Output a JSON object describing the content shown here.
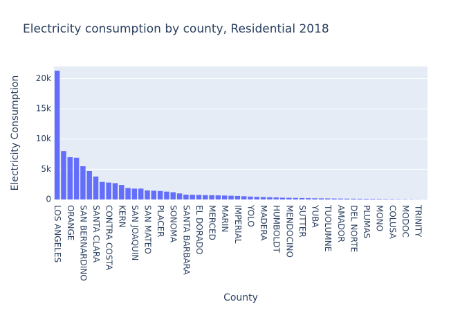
{
  "chart_data": {
    "type": "bar",
    "title": "Electricity consumption by county, Residential 2018",
    "x_label": "County",
    "y_label": "Electricity Consumption",
    "categories": [
      "LOS ANGELES",
      null,
      "ORANGE",
      null,
      "SAN BERNARDINO",
      null,
      "SANTA CLARA",
      null,
      "CONTRA COSTA",
      null,
      "KERN",
      null,
      "SAN JOAQUIN",
      null,
      "SAN MATEO",
      null,
      "PLACER",
      null,
      "SONOMA",
      null,
      "SANTA BARBARA",
      null,
      "EL DORADO",
      null,
      "MERCED",
      null,
      "MARIN",
      null,
      "IMPERIAL",
      null,
      "YOLO",
      null,
      "MADERA",
      null,
      "HUMBOLDT",
      null,
      "MENDOCINO",
      null,
      "SUTTER",
      null,
      "YUBA",
      null,
      "TUOLUMNE",
      null,
      "AMADOR",
      null,
      "DEL NORTE",
      null,
      "PLUMAS",
      null,
      "MONO",
      null,
      "COLUSA",
      null,
      "MODOC",
      null,
      "TRINITY",
      null
    ],
    "values": [
      21300,
      8000,
      7000,
      6900,
      5500,
      4700,
      3800,
      2900,
      2800,
      2700,
      2400,
      1900,
      1800,
      1800,
      1500,
      1450,
      1400,
      1300,
      1200,
      1000,
      800,
      780,
      760,
      720,
      700,
      680,
      650,
      620,
      580,
      540,
      480,
      440,
      400,
      370,
      340,
      300,
      280,
      260,
      240,
      220,
      200,
      190,
      180,
      160,
      150,
      140,
      130,
      120,
      110,
      100,
      90,
      80,
      70,
      60,
      50,
      40,
      30,
      20
    ],
    "color": "#636efa",
    "ylim": [
      0,
      22000
    ],
    "yticks": [
      0,
      {
        "value": 5000,
        "label": "5k"
      },
      {
        "value": 10000,
        "label": "10k"
      },
      {
        "value": 15000,
        "label": "15k"
      },
      {
        "value": 20000,
        "label": "20k"
      }
    ],
    "grid": true
  }
}
